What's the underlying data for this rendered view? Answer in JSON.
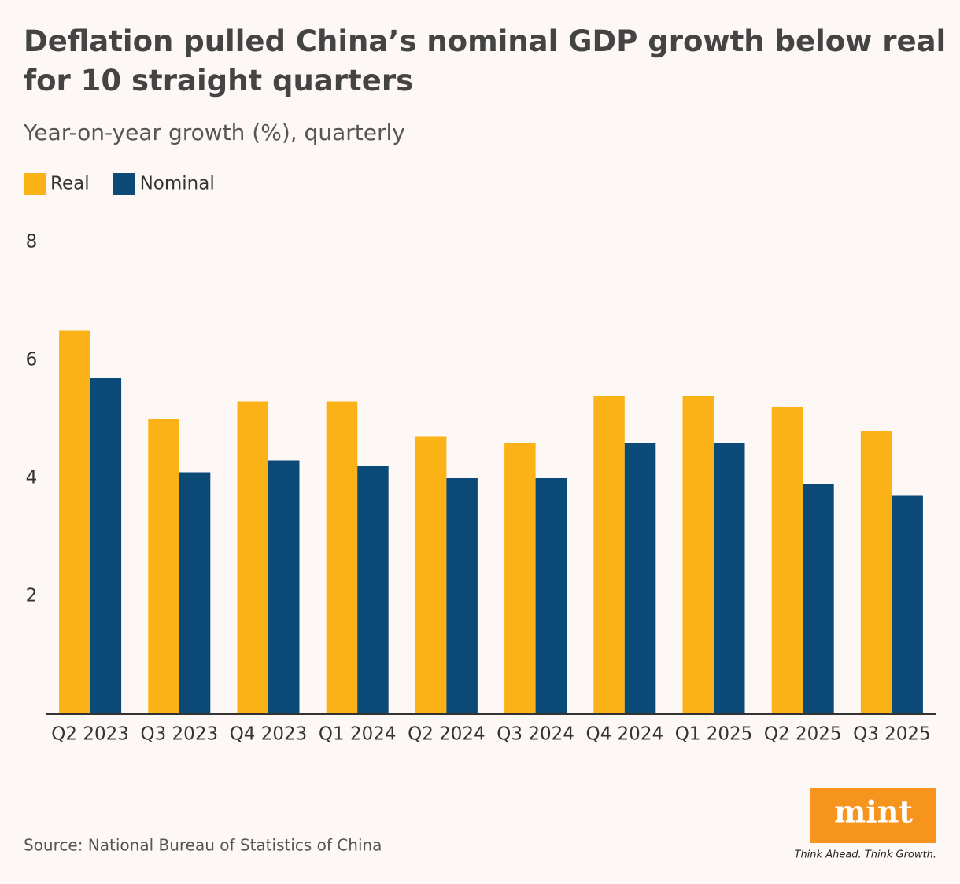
{
  "chart_data": {
    "type": "grouped_bar",
    "title": "Deflation pulled China’s nominal GDP growth below real for 10 straight quarters",
    "subtitle": "Year-on-year growth (%), quarterly",
    "categories": [
      "Q2 2023",
      "Q3 2023",
      "Q4 2023",
      "Q1 2024",
      "Q2 2024",
      "Q3 2024",
      "Q4 2024",
      "Q1 2025",
      "Q2 2025",
      "Q3 2025"
    ],
    "series": [
      {
        "name": "Real",
        "color": "#fbb216",
        "values": [
          6.5,
          5.0,
          5.3,
          5.3,
          4.7,
          4.6,
          5.4,
          5.4,
          5.2,
          4.8
        ]
      },
      {
        "name": "Nominal",
        "color": "#0b4977",
        "values": [
          5.7,
          4.1,
          4.3,
          4.2,
          4.0,
          4.0,
          4.6,
          4.6,
          3.9,
          3.7
        ]
      }
    ],
    "ylim": [
      0,
      8
    ],
    "yticks": [
      2,
      4,
      6,
      8
    ],
    "grid": false,
    "source": "Source: National Bureau of Statistics of China"
  },
  "logo": {
    "text": "mint",
    "tagline": "Think Ahead. Think Growth."
  }
}
